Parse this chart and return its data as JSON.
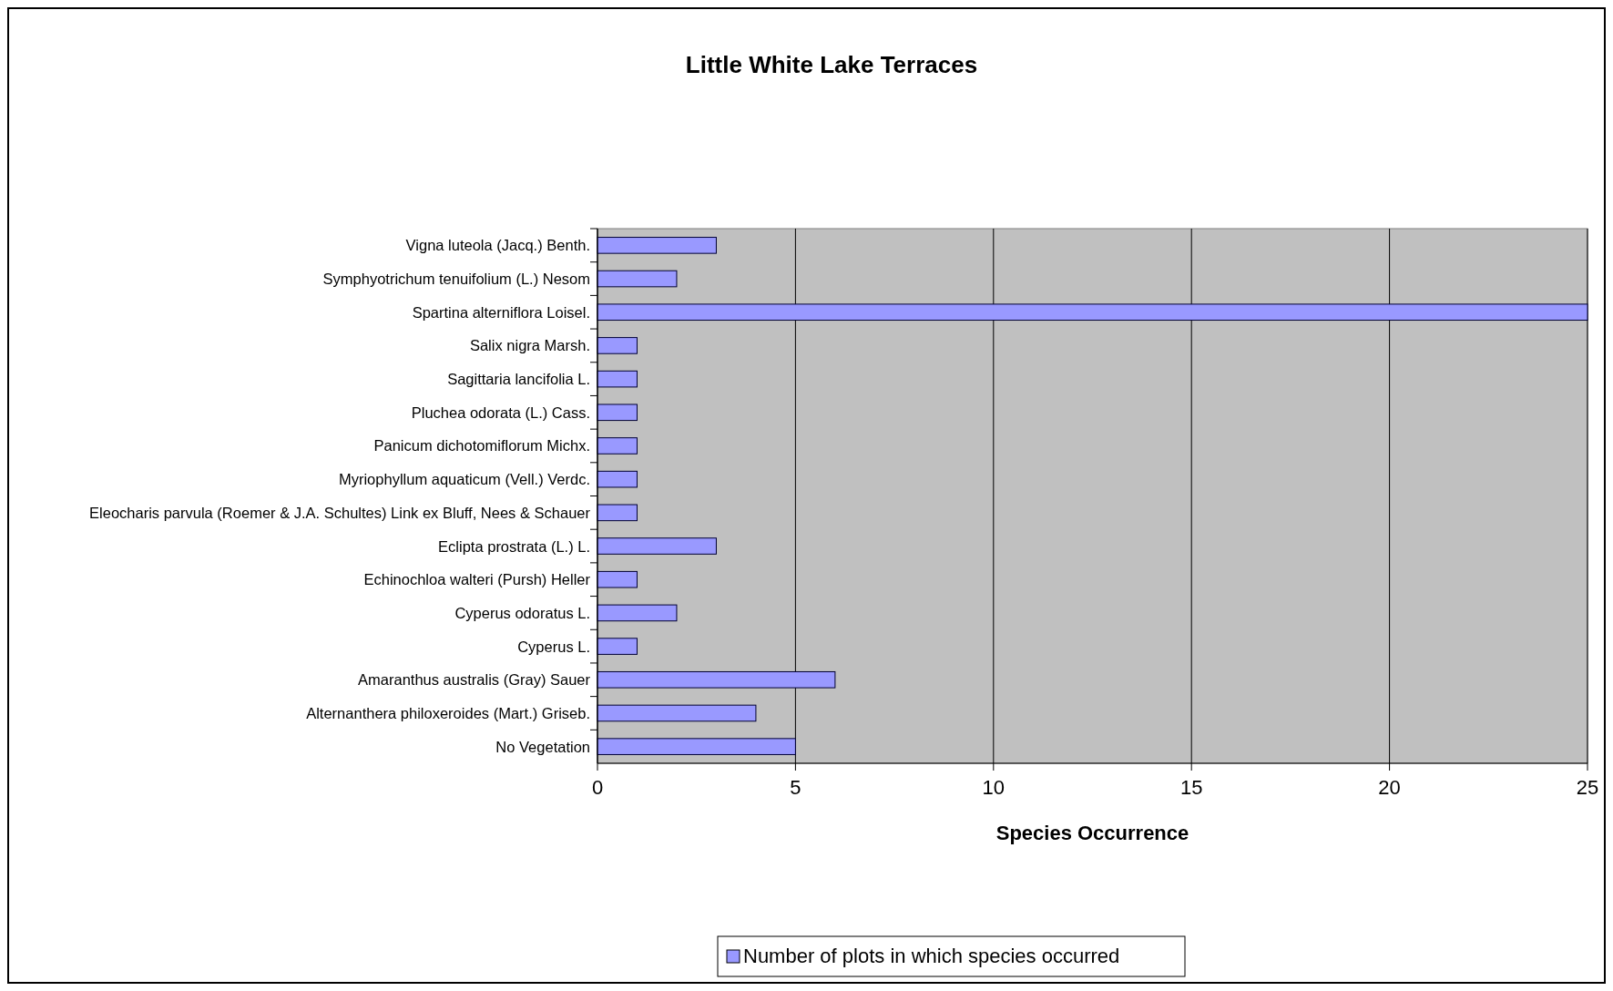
{
  "chart_data": {
    "type": "bar",
    "orientation": "horizontal",
    "title": "Little White Lake Terraces",
    "xlabel": "Species Occurrence",
    "categories": [
      "Vigna luteola (Jacq.) Benth.",
      "Symphyotrichum tenuifolium (L.) Nesom",
      "Spartina alterniflora Loisel.",
      "Salix nigra Marsh.",
      "Sagittaria lancifolia L.",
      "Pluchea odorata (L.) Cass.",
      "Panicum dichotomiflorum Michx.",
      "Myriophyllum aquaticum (Vell.) Verdc.",
      "Eleocharis parvula (Roemer & J.A. Schultes) Link ex Bluff, Nees & Schauer",
      "Eclipta prostrata (L.) L.",
      "Echinochloa walteri (Pursh) Heller",
      "Cyperus odoratus L.",
      "Cyperus L.",
      "Amaranthus australis (Gray) Sauer",
      "Alternanthera philoxeroides (Mart.) Griseb.",
      "No Vegetation"
    ],
    "series": [
      {
        "name": "Number of plots in which species occurred",
        "color": "#9999ff",
        "values": [
          3,
          2,
          25,
          1,
          1,
          1,
          1,
          1,
          1,
          3,
          1,
          2,
          1,
          6,
          4,
          5
        ]
      }
    ],
    "xlim": [
      0,
      25
    ],
    "xticks": [
      0,
      5,
      10,
      15,
      20,
      25
    ],
    "grid": "x",
    "legend": "bottom"
  }
}
